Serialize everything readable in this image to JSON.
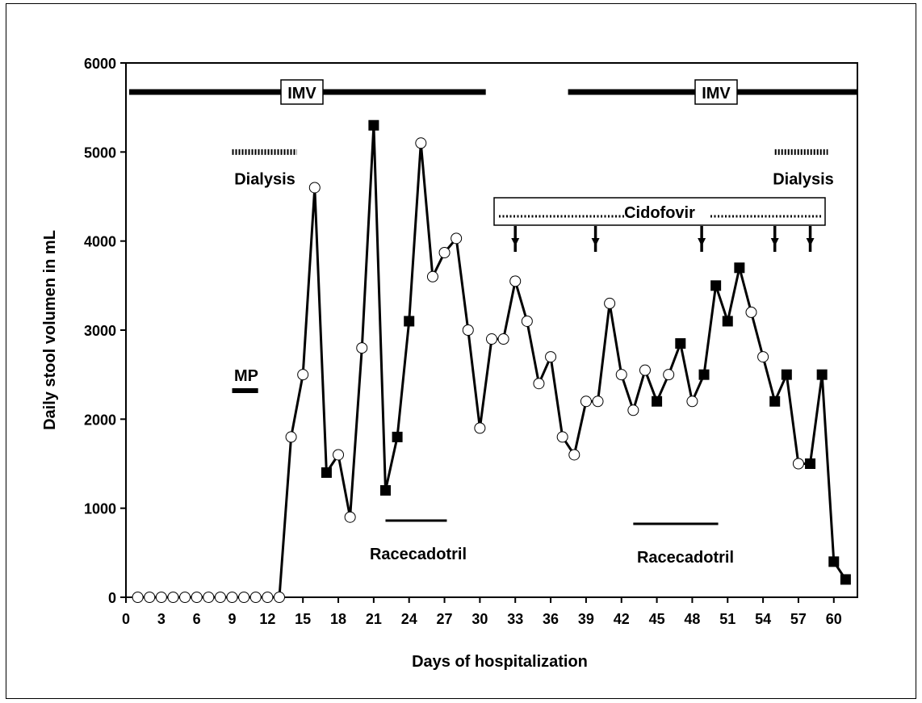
{
  "chart_data": {
    "type": "line",
    "xlabel": "Days of hospitalization",
    "ylabel": "Daily stool volumen in mL",
    "xlim": [
      0,
      62
    ],
    "ylim": [
      0,
      6000
    ],
    "x_ticks": [
      0,
      3,
      6,
      9,
      12,
      15,
      18,
      21,
      24,
      27,
      30,
      33,
      36,
      39,
      42,
      45,
      48,
      51,
      54,
      57,
      60
    ],
    "y_ticks": [
      0,
      1000,
      2000,
      3000,
      4000,
      5000,
      6000
    ],
    "grid": false,
    "series": [
      {
        "marker_legend": {
          "open_circle": "circle",
          "filled_square": "square"
        },
        "points": [
          {
            "x": 1,
            "y": 0,
            "m": "circle"
          },
          {
            "x": 2,
            "y": 0,
            "m": "circle"
          },
          {
            "x": 3,
            "y": 0,
            "m": "circle"
          },
          {
            "x": 4,
            "y": 0,
            "m": "circle"
          },
          {
            "x": 5,
            "y": 0,
            "m": "circle"
          },
          {
            "x": 6,
            "y": 0,
            "m": "circle"
          },
          {
            "x": 7,
            "y": 0,
            "m": "circle"
          },
          {
            "x": 8,
            "y": 0,
            "m": "circle"
          },
          {
            "x": 9,
            "y": 0,
            "m": "circle"
          },
          {
            "x": 10,
            "y": 0,
            "m": "circle"
          },
          {
            "x": 11,
            "y": 0,
            "m": "circle"
          },
          {
            "x": 12,
            "y": 0,
            "m": "circle"
          },
          {
            "x": 13,
            "y": 0,
            "m": "circle"
          },
          {
            "x": 14,
            "y": 1800,
            "m": "circle"
          },
          {
            "x": 15,
            "y": 2500,
            "m": "circle"
          },
          {
            "x": 16,
            "y": 4600,
            "m": "circle"
          },
          {
            "x": 17,
            "y": 1400,
            "m": "square"
          },
          {
            "x": 18,
            "y": 1600,
            "m": "circle"
          },
          {
            "x": 19,
            "y": 900,
            "m": "circle"
          },
          {
            "x": 20,
            "y": 2800,
            "m": "circle"
          },
          {
            "x": 21,
            "y": 5300,
            "m": "square"
          },
          {
            "x": 22,
            "y": 1200,
            "m": "square"
          },
          {
            "x": 23,
            "y": 1800,
            "m": "square"
          },
          {
            "x": 24,
            "y": 3100,
            "m": "square"
          },
          {
            "x": 25,
            "y": 5100,
            "m": "circle"
          },
          {
            "x": 26,
            "y": 3600,
            "m": "circle"
          },
          {
            "x": 27,
            "y": 3870,
            "m": "circle"
          },
          {
            "x": 28,
            "y": 4030,
            "m": "circle"
          },
          {
            "x": 29,
            "y": 3000,
            "m": "circle"
          },
          {
            "x": 30,
            "y": 1900,
            "m": "circle"
          },
          {
            "x": 31,
            "y": 2900,
            "m": "circle"
          },
          {
            "x": 32,
            "y": 2900,
            "m": "circle"
          },
          {
            "x": 33,
            "y": 3550,
            "m": "circle"
          },
          {
            "x": 34,
            "y": 3100,
            "m": "circle"
          },
          {
            "x": 35,
            "y": 2400,
            "m": "circle"
          },
          {
            "x": 36,
            "y": 2700,
            "m": "circle"
          },
          {
            "x": 37,
            "y": 1800,
            "m": "circle"
          },
          {
            "x": 38,
            "y": 1600,
            "m": "circle"
          },
          {
            "x": 39,
            "y": 2200,
            "m": "circle"
          },
          {
            "x": 40,
            "y": 2200,
            "m": "circle"
          },
          {
            "x": 41,
            "y": 3300,
            "m": "circle"
          },
          {
            "x": 42,
            "y": 2500,
            "m": "circle"
          },
          {
            "x": 43,
            "y": 2100,
            "m": "circle"
          },
          {
            "x": 44,
            "y": 2550,
            "m": "circle"
          },
          {
            "x": 45,
            "y": 2200,
            "m": "square"
          },
          {
            "x": 46,
            "y": 2500,
            "m": "circle"
          },
          {
            "x": 47,
            "y": 2850,
            "m": "square"
          },
          {
            "x": 48,
            "y": 2200,
            "m": "circle"
          },
          {
            "x": 49,
            "y": 2500,
            "m": "square"
          },
          {
            "x": 50,
            "y": 3500,
            "m": "square"
          },
          {
            "x": 51,
            "y": 3100,
            "m": "square"
          },
          {
            "x": 52,
            "y": 3700,
            "m": "square"
          },
          {
            "x": 53,
            "y": 3200,
            "m": "circle"
          },
          {
            "x": 54,
            "y": 2700,
            "m": "circle"
          },
          {
            "x": 55,
            "y": 2200,
            "m": "square"
          },
          {
            "x": 56,
            "y": 2500,
            "m": "square"
          },
          {
            "x": 57,
            "y": 1500,
            "m": "circle"
          },
          {
            "x": 58,
            "y": 1500,
            "m": "square"
          },
          {
            "x": 59,
            "y": 2500,
            "m": "square"
          },
          {
            "x": 60,
            "y": 400,
            "m": "square"
          },
          {
            "x": 61,
            "y": 200,
            "m": "square"
          }
        ]
      }
    ],
    "annotations": {
      "imv": [
        {
          "label": "IMV",
          "x_start": 0,
          "x_end": 30.5
        },
        {
          "label": "IMV",
          "x_start": 37.2,
          "x_end": 62
        }
      ],
      "dialysis": [
        {
          "label": "Dialysis",
          "x_start": 9,
          "x_end": 14.5
        },
        {
          "label": "Dialysis",
          "x_start": 55,
          "x_end": 59.5
        }
      ],
      "mp": {
        "label": "MP",
        "x_start": 9,
        "x_end": 11.2
      },
      "racecadotril": [
        {
          "label": "Racecadotril",
          "x_start": 22,
          "x_end": 27.2
        },
        {
          "label": "Racecadotril",
          "x_start": 43,
          "x_end": 50.2
        }
      ],
      "cidofovir": {
        "label": "Cidofovir",
        "dose_days": [
          33,
          39.8,
          48.8,
          55,
          58
        ]
      }
    }
  }
}
